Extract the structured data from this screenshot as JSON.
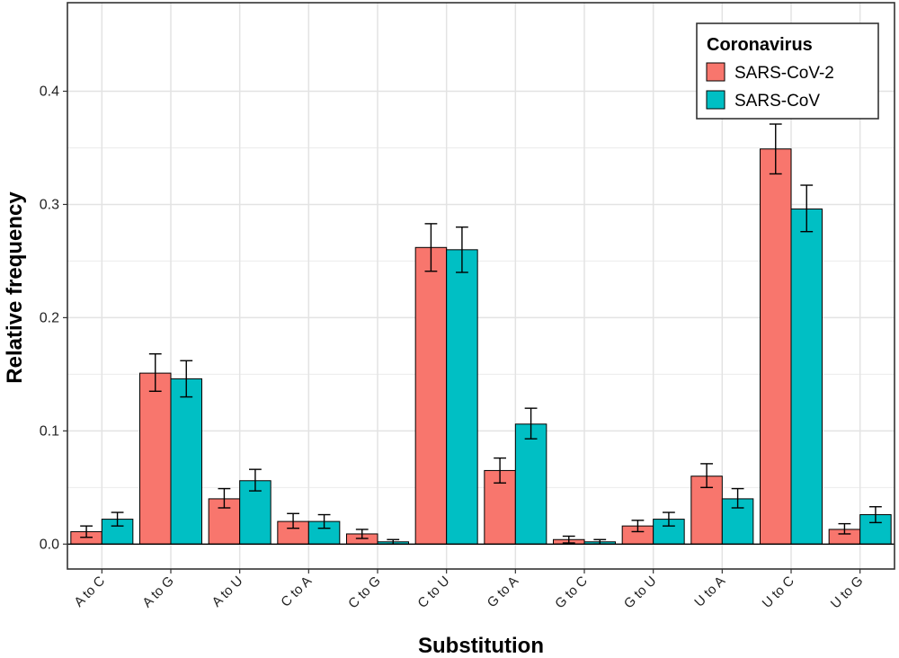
{
  "chart_data": {
    "type": "bar",
    "title": "",
    "xlabel": "Substitution",
    "ylabel": "Relative frequency",
    "categories": [
      "A to C",
      "A to G",
      "A to U",
      "C to A",
      "C to G",
      "C to U",
      "G to A",
      "G to C",
      "G to U",
      "U to A",
      "U to C",
      "U to G"
    ],
    "series": [
      {
        "name": "SARS-CoV-2",
        "color": "#F8766D",
        "values": [
          0.011,
          0.151,
          0.04,
          0.02,
          0.009,
          0.262,
          0.065,
          0.004,
          0.016,
          0.06,
          0.349,
          0.013
        ],
        "error_low": [
          0.006,
          0.135,
          0.032,
          0.014,
          0.005,
          0.241,
          0.054,
          0.001,
          0.011,
          0.05,
          0.327,
          0.009
        ],
        "error_high": [
          0.016,
          0.168,
          0.049,
          0.027,
          0.013,
          0.283,
          0.076,
          0.007,
          0.021,
          0.071,
          0.371,
          0.018
        ]
      },
      {
        "name": "SARS-CoV",
        "color": "#00BFC4",
        "values": [
          0.022,
          0.146,
          0.056,
          0.02,
          0.002,
          0.26,
          0.106,
          0.002,
          0.022,
          0.04,
          0.296,
          0.026
        ],
        "error_low": [
          0.016,
          0.13,
          0.047,
          0.014,
          0.0,
          0.24,
          0.093,
          0.0,
          0.016,
          0.032,
          0.276,
          0.019
        ],
        "error_high": [
          0.028,
          0.162,
          0.066,
          0.026,
          0.004,
          0.28,
          0.12,
          0.004,
          0.028,
          0.049,
          0.317,
          0.033
        ]
      }
    ],
    "ylim": [
      -0.022,
      0.4782
    ],
    "yticks": [
      0.0,
      0.1,
      0.2,
      0.3,
      0.4
    ],
    "ytick_labels": [
      "0.0",
      "0.1",
      "0.2",
      "0.3",
      "0.4"
    ],
    "grid": true,
    "legend": {
      "title": "Coronavirus",
      "position": "top-right"
    }
  }
}
